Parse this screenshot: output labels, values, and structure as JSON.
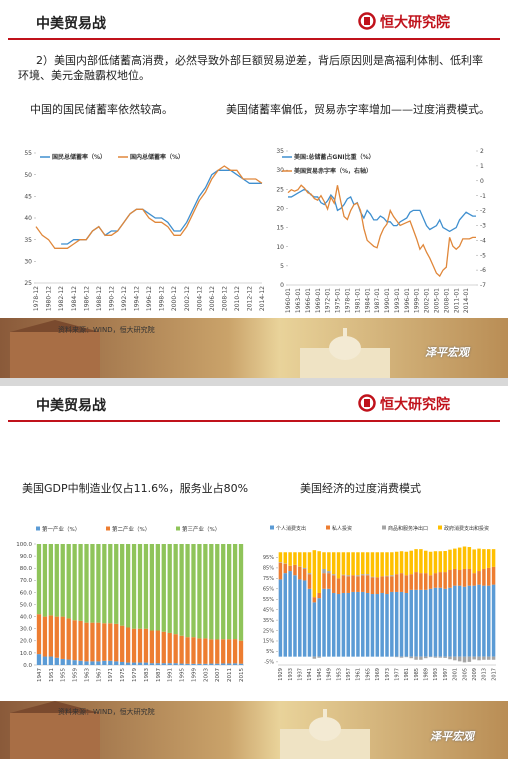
{
  "slides": [
    {
      "header": {
        "title": "中美贸易战",
        "logo": "恒大研究院"
      },
      "paragraph": "2）美国内部低储蓄高消费，必然导致外部巨额贸易逆差，背后原因则是高福利体制、低利率环境、美元金融霸权地位。",
      "captions": [
        "中国的国民储蓄率依然较高。",
        "美国储蓄率偏低，贸易赤字率增加——过度消费模式。"
      ],
      "source": "资料来源：WIND，恒大研究院",
      "watermark": "泽平宏观"
    },
    {
      "header": {
        "title": "中美贸易战",
        "logo": "恒大研究院"
      },
      "captions": [
        "美国GDP中制造业仅占11.6%，服务业占80%",
        "美国经济的过度消费模式"
      ],
      "source": "资料来源：WIND，恒大研究院",
      "watermark": "泽平宏观"
    }
  ],
  "chart_data": [
    {
      "type": "line",
      "legend": "top",
      "categories": [
        "1978-12",
        null,
        "1980-12",
        null,
        "1982-12",
        null,
        "1984-12",
        null,
        "1986-12",
        null,
        "1988-12",
        null,
        "1990-12",
        null,
        "1992-12",
        null,
        "1994-12",
        null,
        "1996-12",
        null,
        "1998-12",
        null,
        "2000-12",
        null,
        "2002-12",
        null,
        "2004-12",
        null,
        "2006-12",
        null,
        "2008-12",
        null,
        "2010-12",
        null,
        "2012-12",
        null,
        "2014-12"
      ],
      "ylim": [
        25,
        55
      ],
      "yticks": [
        25,
        30,
        35,
        40,
        45,
        50,
        55
      ],
      "series": [
        {
          "name": "国民总储蓄率（%）",
          "color": "#3f8fcf",
          "values": [
            null,
            null,
            null,
            null,
            34,
            34,
            35,
            35,
            35,
            37,
            38,
            36,
            37,
            37,
            39,
            41,
            42,
            42,
            41,
            40,
            40,
            39,
            37,
            37,
            39,
            42,
            45,
            47,
            50,
            51,
            51,
            51,
            50,
            49,
            48,
            48,
            48
          ]
        },
        {
          "name": "国内总储蓄率（%）",
          "color": "#e0873a",
          "values": [
            38,
            36,
            35,
            33,
            33,
            33,
            34,
            35,
            35,
            37,
            38,
            36,
            36,
            37,
            39,
            41,
            42,
            42,
            40,
            39,
            39,
            38,
            36,
            36,
            38,
            41,
            44,
            46,
            49,
            51,
            52,
            51,
            51,
            49,
            49,
            49,
            48
          ]
        }
      ]
    },
    {
      "type": "line",
      "legend": "top-left",
      "categories": [
        "1960-01",
        null,
        null,
        "1963-01",
        null,
        null,
        "1966-01",
        null,
        null,
        "1969-01",
        null,
        null,
        "1972-01",
        null,
        null,
        "1975-01",
        null,
        null,
        "1978-01",
        null,
        null,
        "1981-01",
        null,
        null,
        "1984-01",
        null,
        null,
        "1987-01",
        null,
        null,
        "1990-01",
        null,
        null,
        "1993-01",
        null,
        null,
        "1996-01",
        null,
        null,
        "1999-01",
        null,
        null,
        "2002-01",
        null,
        null,
        "2005-01",
        null,
        null,
        "2008-01",
        null,
        null,
        "2011-01",
        null,
        null,
        "2014-01",
        null,
        null,
        null
      ],
      "ylim": [
        0,
        35
      ],
      "yticks": [
        0,
        5,
        10,
        15,
        20,
        25,
        30,
        35
      ],
      "y2lim": [
        -7,
        2
      ],
      "y2ticks": [
        -7,
        -6,
        -5,
        -4,
        -3,
        -2,
        -1,
        0,
        1,
        2
      ],
      "series": [
        {
          "name": "美国:总储蓄占GNI比重（%）",
          "color": "#3f8fcf",
          "values": [
            23,
            23,
            23.5,
            24,
            24.5,
            25,
            24.5,
            23.5,
            23,
            23,
            21.5,
            21,
            22,
            23.5,
            22.5,
            19.5,
            20,
            21,
            22.5,
            23,
            21,
            21.5,
            19,
            17.5,
            19.5,
            18.5,
            17,
            17,
            18,
            17.5,
            16.5,
            16.5,
            15.5,
            15.5,
            16.5,
            17,
            17.5,
            19,
            19.5,
            19.5,
            19.5,
            17.5,
            15.5,
            14.5,
            15,
            15.5,
            17,
            15,
            14.5,
            14,
            14.5,
            15,
            17,
            18,
            19,
            18.5,
            18,
            18
          ]
        },
        {
          "name": "美国贸易赤字率（%，右轴）",
          "color": "#e0873a",
          "axis": "y2",
          "values": [
            -0.8,
            -0.6,
            -0.7,
            -0.6,
            -0.3,
            -0.5,
            -0.8,
            -0.9,
            -1.2,
            -1.3,
            -1.0,
            -1.4,
            -1.9,
            -1.1,
            -1.5,
            -0.3,
            -1.4,
            -2.4,
            -2.6,
            -2.0,
            -1.6,
            -1.5,
            -2.0,
            -3.2,
            -4.0,
            -4.2,
            -4.4,
            -4.5,
            -3.7,
            -3.2,
            -2.9,
            -2.0,
            -2.4,
            -2.7,
            -3.0,
            -2.9,
            -2.8,
            -2.7,
            -3.3,
            -3.9,
            -4.6,
            -4.3,
            -4.8,
            -5.2,
            -5.7,
            -6.2,
            -6.4,
            -6.0,
            -5.8,
            -3.8,
            -4.4,
            -4.6,
            -4.4,
            -3.9,
            -3.9,
            -3.9,
            -3.8,
            -3.8
          ]
        }
      ]
    },
    {
      "type": "bar",
      "stacked": true,
      "legend": "top",
      "categories": [
        "1947",
        null,
        "1951",
        null,
        "1955",
        null,
        "1959",
        null,
        "1963",
        null,
        "1967",
        null,
        "1971",
        null,
        "1975",
        null,
        "1979",
        null,
        "1983",
        null,
        "1987",
        null,
        "1991",
        null,
        "1995",
        null,
        "1999",
        null,
        "2003",
        null,
        "2007",
        null,
        "2011",
        null,
        "2015"
      ],
      "ylim": [
        0,
        100
      ],
      "yticks": [
        {
          "value": 0,
          "label": "0.0"
        },
        {
          "value": 10,
          "label": "10.0"
        },
        {
          "value": 20,
          "label": "20.0"
        },
        {
          "value": 30,
          "label": "30.0"
        },
        {
          "value": 40,
          "label": "40.0"
        },
        {
          "value": 50,
          "label": "50.0"
        },
        {
          "value": 60,
          "label": "60.0"
        },
        {
          "value": 70,
          "label": "70.0"
        },
        {
          "value": 80,
          "label": "80.0"
        },
        {
          "value": 90,
          "label": "90.0"
        },
        {
          "value": 100,
          "label": "100.0"
        }
      ],
      "series": [
        {
          "name": "第一产业（%）",
          "color": "#5b9bd5",
          "values": [
            9,
            7,
            7,
            6,
            5,
            4.5,
            4,
            3.5,
            3,
            3,
            3,
            3.5,
            3.5,
            3,
            2.5,
            2,
            2,
            2,
            2,
            1.5,
            1.5,
            1.5,
            1.5,
            1.5,
            1.2,
            1,
            1,
            1,
            1,
            1.2,
            1.1,
            1.3,
            1.3,
            1.4,
            1.1
          ]
        },
        {
          "name": "第二产业（%）",
          "color": "#ed7d31",
          "values": [
            33,
            33,
            34,
            34,
            35,
            34,
            33,
            33,
            32,
            32,
            32,
            31,
            31,
            31,
            30,
            29,
            28,
            28,
            28,
            27,
            27,
            26,
            25,
            24,
            23,
            22,
            22,
            21,
            21,
            20,
            20,
            20,
            20,
            20,
            19
          ]
        },
        {
          "name": "第三产业（%）",
          "color": "#8fc45a",
          "values": [
            58,
            60,
            59,
            60,
            60,
            61.5,
            63,
            63.5,
            65,
            65,
            65,
            65.5,
            65.5,
            66,
            67.5,
            69,
            70,
            70,
            70,
            71.5,
            71.5,
            72.5,
            73.5,
            74.5,
            75.8,
            77,
            77,
            78,
            78,
            78.8,
            78.9,
            78.7,
            78.7,
            78.6,
            79.9
          ]
        }
      ]
    },
    {
      "type": "bar",
      "stacked": true,
      "legend": "top",
      "categories": [
        "1929",
        null,
        "1933",
        null,
        "1937",
        null,
        "1941",
        null,
        "1945",
        null,
        "1949",
        null,
        "1953",
        null,
        "1957",
        null,
        "1961",
        null,
        "1965",
        null,
        "1969",
        null,
        "1973",
        null,
        "1977",
        null,
        "1981",
        null,
        "1985",
        null,
        "1989",
        null,
        "1993",
        null,
        "1997",
        null,
        "2001",
        null,
        "2005",
        null,
        "2009",
        null,
        "2013",
        null,
        "2017"
      ],
      "ylim": [
        -8,
        106
      ],
      "yticks": [
        {
          "value": -5,
          "label": "-5%"
        },
        {
          "value": 5,
          "label": "5%"
        },
        {
          "value": 15,
          "label": "15%"
        },
        {
          "value": 25,
          "label": "25%"
        },
        {
          "value": 35,
          "label": "35%"
        },
        {
          "value": 45,
          "label": "45%"
        },
        {
          "value": 55,
          "label": "55%"
        },
        {
          "value": 65,
          "label": "65%"
        },
        {
          "value": 75,
          "label": "75%"
        },
        {
          "value": 85,
          "label": "85%"
        },
        {
          "value": 95,
          "label": "95%"
        }
      ],
      "series": [
        {
          "name": "个人消费支出",
          "color": "#5b9bd5",
          "values": [
            74,
            80,
            82,
            78,
            74,
            73,
            65,
            52,
            56,
            65,
            65,
            61,
            60,
            61,
            61,
            62,
            62,
            62,
            61,
            60,
            60,
            61,
            60,
            62,
            62,
            62,
            61,
            64,
            64,
            64,
            64,
            65,
            66,
            66,
            65,
            66,
            68,
            68,
            67,
            68,
            68,
            69,
            68,
            68,
            69
          ]
        },
        {
          "name": "私人投资",
          "color": "#ed7d31",
          "values": [
            16,
            9,
            5,
            10,
            12,
            11,
            14,
            5,
            5,
            15,
            15,
            17,
            15,
            17,
            16,
            16,
            15,
            16,
            17,
            16,
            16,
            16,
            17,
            15,
            17,
            18,
            17,
            15,
            17,
            16,
            16,
            13,
            14,
            15,
            16,
            17,
            16,
            15,
            17,
            16,
            12,
            13,
            16,
            17,
            17
          ]
        },
        {
          "name": "商品和服务净出口",
          "color": "#a5a5a5",
          "values": [
            0.5,
            0.3,
            0.1,
            0,
            0.3,
            1,
            1,
            -2,
            -1,
            4,
            2,
            1,
            0,
            0.5,
            1,
            0,
            1,
            1,
            1,
            0.5,
            0,
            0,
            0.5,
            1,
            -0.5,
            -1,
            -0.5,
            -1.5,
            -3,
            -3,
            -1.5,
            -0.5,
            -1,
            -1,
            -1.2,
            -2.5,
            -3.5,
            -4.5,
            -5.5,
            -5,
            -2.7,
            -3.5,
            -3,
            -3,
            -3
          ]
        },
        {
          "name": "政府消费支出和投资",
          "color": "#ffc000",
          "values": [
            9.5,
            10.7,
            12.9,
            12,
            13.7,
            15,
            20,
            45,
            40,
            16,
            18,
            21,
            25,
            21.5,
            22,
            22,
            22,
            21,
            21,
            23.5,
            24,
            23,
            22.5,
            22,
            21.5,
            21,
            22.5,
            22.5,
            22,
            23,
            21.5,
            22.5,
            21,
            20,
            20.2,
            19.5,
            19.5,
            21.5,
            21.5,
            21,
            22.7,
            21.5,
            19,
            18,
            17
          ]
        }
      ]
    }
  ]
}
